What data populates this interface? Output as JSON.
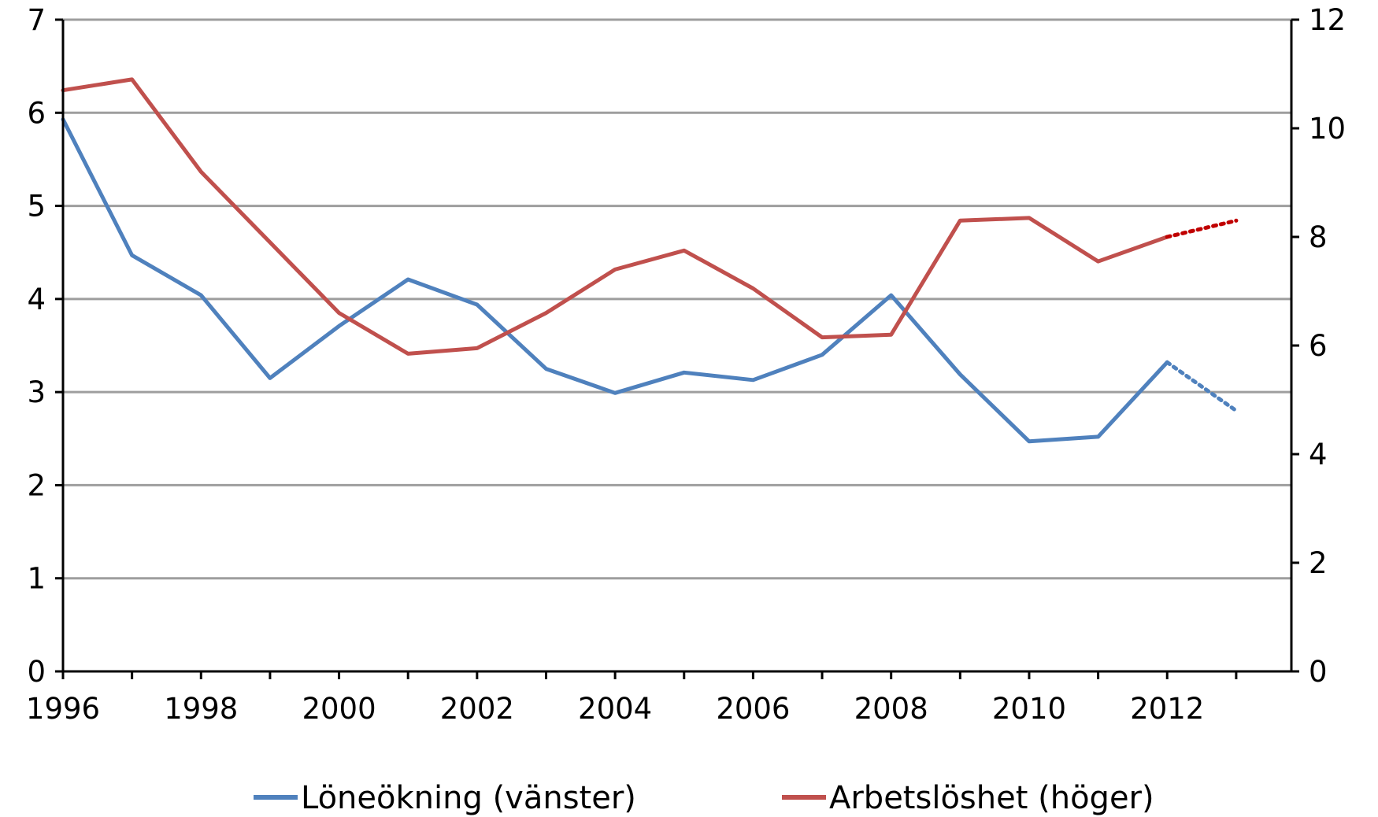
{
  "chart_data": {
    "type": "line",
    "title": "",
    "xlabel": "",
    "ylabel": "",
    "x": [
      1996,
      1997,
      1998,
      1999,
      2000,
      2001,
      2002,
      2003,
      2004,
      2005,
      2006,
      2007,
      2008,
      2009,
      2010,
      2011,
      2012,
      2013
    ],
    "x_ticks": [
      "1996",
      "1998",
      "2000",
      "2002",
      "2004",
      "2006",
      "2008",
      "2010",
      "2012"
    ],
    "xlim": [
      1996,
      2013.8
    ],
    "y_left": {
      "ylim": [
        0,
        7
      ],
      "ticks": [
        "0",
        "1",
        "2",
        "3",
        "4",
        "5",
        "6",
        "7"
      ]
    },
    "y_right": {
      "ylim": [
        0,
        12
      ],
      "ticks": [
        "0",
        "2",
        "4",
        "6",
        "8",
        "10",
        "12"
      ]
    },
    "grid": true,
    "legend_position": "bottom",
    "series": [
      {
        "name": "Löneökning (vänster)",
        "axis": "left",
        "color": "#4F81BD",
        "values": [
          5.93,
          4.47,
          4.04,
          3.15,
          3.71,
          4.21,
          3.94,
          3.25,
          2.99,
          3.21,
          3.13,
          3.4,
          4.04,
          3.19,
          2.47,
          2.52,
          3.32,
          2.8
        ],
        "forecast_from": 2012
      },
      {
        "name": "Arbetslöshet (höger)",
        "axis": "right",
        "color": "#C0504D",
        "forecast_color": "#C00000",
        "values": [
          10.7,
          10.9,
          9.2,
          7.9,
          6.6,
          5.85,
          5.95,
          6.6,
          7.4,
          7.75,
          7.05,
          6.15,
          6.2,
          8.3,
          8.35,
          7.55,
          8.0,
          8.3
        ],
        "forecast_from": 2012
      }
    ]
  }
}
